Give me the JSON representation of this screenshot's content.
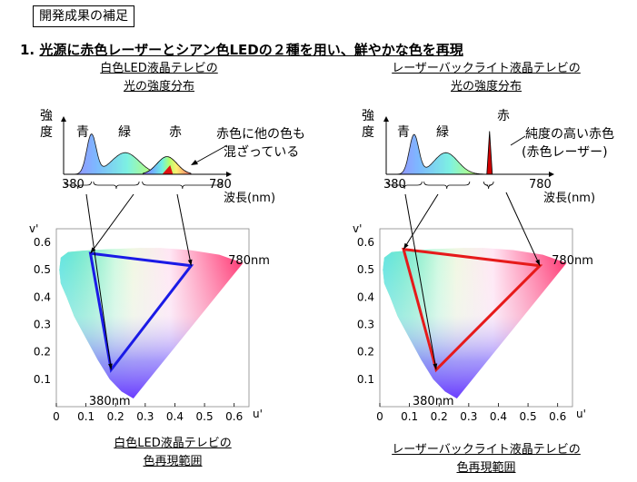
{
  "section_title": "開発成果の補足",
  "heading": {
    "number": "1.",
    "text": "光源に赤色レーザーとシアン色LEDの２種を用い、鮮やかな色を再現"
  },
  "left": {
    "spectrum_title_1": "白色LED液晶テレビの",
    "spectrum_title_2": "光の強度分布",
    "y_label_1": "強",
    "y_label_2": "度",
    "peak_blue": "青",
    "peak_green": "緑",
    "peak_red": "赤",
    "note_line_1": "赤色に他の色も",
    "note_line_2": "混ざっている",
    "x_min_label": "380",
    "x_max_label": "780",
    "x_axis_label": "波長(nm)",
    "gamut_title_1": "白色LED液晶テレビの",
    "gamut_title_2": "色再現範囲",
    "triangle_color": "#1a1ae6"
  },
  "right": {
    "spectrum_title_1": "レーザーバックライト液晶テレビの",
    "spectrum_title_2": "光の強度分布",
    "y_label_1": "強",
    "y_label_2": "度",
    "peak_blue": "青",
    "peak_green": "緑",
    "peak_red": "赤",
    "note_line_1": "純度の高い赤色",
    "note_line_2": "(赤色レーザー)",
    "x_min_label": "380",
    "x_max_label": "780",
    "x_axis_label": "波長(nm)",
    "gamut_title_1": "レーザーバックライト液晶テレビの",
    "gamut_title_2": "色再現範囲",
    "triangle_color": "#e61a1a"
  },
  "chart_data": [
    {
      "type": "area",
      "title": "白色LED液晶テレビの光の強度分布",
      "xlabel": "波長(nm)",
      "ylabel": "強度",
      "xlim": [
        380,
        780
      ],
      "peaks": [
        {
          "name": "青",
          "wavelength": 450,
          "relative_intensity": 1.0,
          "width_nm": 12
        },
        {
          "name": "緑",
          "wavelength": 535,
          "relative_intensity": 0.55,
          "width_nm": 35
        },
        {
          "name": "赤",
          "wavelength": 640,
          "relative_intensity": 0.45,
          "width_nm": 25
        }
      ]
    },
    {
      "type": "area",
      "title": "レーザーバックライト液晶テレビの光の強度分布",
      "xlabel": "波長(nm)",
      "ylabel": "強度",
      "xlim": [
        380,
        780
      ],
      "peaks": [
        {
          "name": "青",
          "wavelength": 450,
          "relative_intensity": 1.0,
          "width_nm": 12
        },
        {
          "name": "緑",
          "wavelength": 530,
          "relative_intensity": 0.55,
          "width_nm": 30
        },
        {
          "name": "赤",
          "wavelength": 640,
          "relative_intensity": 2.2,
          "width_nm": 3
        }
      ]
    },
    {
      "type": "scatter",
      "title": "白色LED液晶テレビの色再現範囲",
      "xlabel": "u'",
      "ylabel": "v'",
      "xlim": [
        0,
        0.65
      ],
      "ylim": [
        0,
        0.65
      ],
      "x_ticks": [
        "0",
        "0.1",
        "0.2",
        "0.3",
        "0.4",
        "0.5",
        "0.6"
      ],
      "y_ticks": [
        "0.1",
        "0.2",
        "0.3",
        "0.4",
        "0.5",
        "0.6"
      ],
      "annotations": [
        "780nm",
        "380nm"
      ],
      "gamut_triangle": [
        {
          "u": 0.115,
          "v": 0.56
        },
        {
          "u": 0.455,
          "v": 0.515
        },
        {
          "u": 0.185,
          "v": 0.135
        }
      ]
    },
    {
      "type": "scatter",
      "title": "レーザーバックライト液晶テレビの色再現範囲",
      "xlabel": "u'",
      "ylabel": "v'",
      "xlim": [
        0,
        0.65
      ],
      "ylim": [
        0,
        0.65
      ],
      "x_ticks": [
        "0",
        "0.1",
        "0.2",
        "0.3",
        "0.4",
        "0.5",
        "0.6"
      ],
      "y_ticks": [
        "0.1",
        "0.2",
        "0.3",
        "0.4",
        "0.5",
        "0.6"
      ],
      "annotations": [
        "780nm",
        "380nm"
      ],
      "gamut_triangle": [
        {
          "u": 0.08,
          "v": 0.575
        },
        {
          "u": 0.54,
          "v": 0.515
        },
        {
          "u": 0.19,
          "v": 0.135
        }
      ]
    }
  ]
}
